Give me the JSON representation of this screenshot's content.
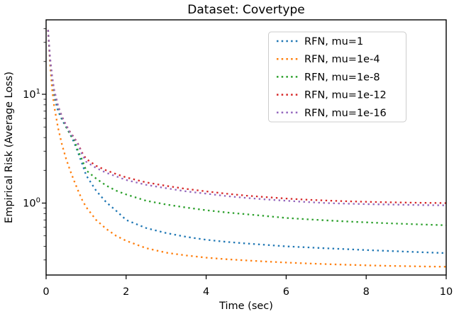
{
  "chart_data": {
    "type": "line",
    "title": "Dataset: Covertype",
    "xlabel": "Time (sec)",
    "ylabel": "Empirical Risk (Average Loss)",
    "yscale": "log",
    "grid": false,
    "line_style": "dotted",
    "legend_position": "upper right",
    "xlim": [
      0,
      10
    ],
    "ylim": [
      0.215,
      49
    ],
    "xticks": [
      0,
      2,
      4,
      6,
      8,
      10
    ],
    "ytick_exponents": [
      1,
      0
    ],
    "yticks_minor": [
      40,
      30,
      20,
      9,
      8,
      7,
      6,
      5,
      4,
      3,
      2,
      0.9,
      0.8,
      0.7,
      0.6,
      0.5,
      0.4,
      0.3
    ],
    "x": [
      0.05,
      0.1,
      0.15,
      0.2,
      0.3,
      0.4,
      0.5,
      0.6,
      0.7,
      0.8,
      0.9,
      1.0,
      1.25,
      1.5,
      1.75,
      2.0,
      2.5,
      3.0,
      3.5,
      4.0,
      4.5,
      5.0,
      5.5,
      6.0,
      6.5,
      7.0,
      7.5,
      8.0,
      8.5,
      9.0,
      9.5,
      10.0
    ],
    "series": [
      {
        "name": "RFN, mu=1",
        "color": "#1f77b4",
        "values": [
          39,
          20,
          13,
          9.5,
          7.0,
          5.8,
          5.0,
          4.3,
          3.6,
          2.9,
          2.3,
          1.8,
          1.3,
          1.02,
          0.85,
          0.7,
          0.59,
          0.53,
          0.49,
          0.46,
          0.44,
          0.425,
          0.413,
          0.4,
          0.392,
          0.384,
          0.377,
          0.37,
          0.364,
          0.358,
          0.352,
          0.347
        ]
      },
      {
        "name": "RFN, mu=1e-4",
        "color": "#ff7f0e",
        "values": [
          39,
          19,
          11,
          7.8,
          4.9,
          3.4,
          2.55,
          2.0,
          1.6,
          1.3,
          1.07,
          0.92,
          0.7,
          0.58,
          0.5,
          0.45,
          0.385,
          0.35,
          0.33,
          0.315,
          0.305,
          0.297,
          0.29,
          0.284,
          0.279,
          0.275,
          0.271,
          0.268,
          0.265,
          0.263,
          0.261,
          0.26
        ]
      },
      {
        "name": "RFN, mu=1e-8",
        "color": "#2ca02c",
        "values": [
          39,
          21,
          14,
          10.5,
          7.6,
          6.0,
          5.0,
          4.3,
          3.8,
          3.0,
          2.5,
          2.0,
          1.68,
          1.45,
          1.3,
          1.2,
          1.05,
          0.97,
          0.91,
          0.86,
          0.82,
          0.79,
          0.76,
          0.73,
          0.71,
          0.693,
          0.678,
          0.665,
          0.653,
          0.643,
          0.634,
          0.625
        ]
      },
      {
        "name": "RFN, mu=1e-12",
        "color": "#d62728",
        "values": [
          39,
          21.5,
          14.5,
          11,
          7.8,
          6.2,
          5.2,
          4.5,
          4.0,
          3.5,
          2.9,
          2.55,
          2.2,
          2.0,
          1.85,
          1.72,
          1.55,
          1.44,
          1.35,
          1.28,
          1.22,
          1.17,
          1.135,
          1.1,
          1.075,
          1.055,
          1.04,
          1.028,
          1.018,
          1.01,
          1.004,
          1.0
        ]
      },
      {
        "name": "RFN, mu=1e-16",
        "color": "#9467bd",
        "values": [
          39,
          21.5,
          14.5,
          11,
          7.8,
          6.15,
          5.15,
          4.45,
          3.95,
          3.45,
          2.8,
          2.4,
          2.1,
          1.9,
          1.76,
          1.63,
          1.47,
          1.37,
          1.28,
          1.22,
          1.16,
          1.115,
          1.08,
          1.05,
          1.022,
          1.0,
          0.988,
          0.978,
          0.97,
          0.963,
          0.958,
          0.953
        ]
      }
    ]
  }
}
